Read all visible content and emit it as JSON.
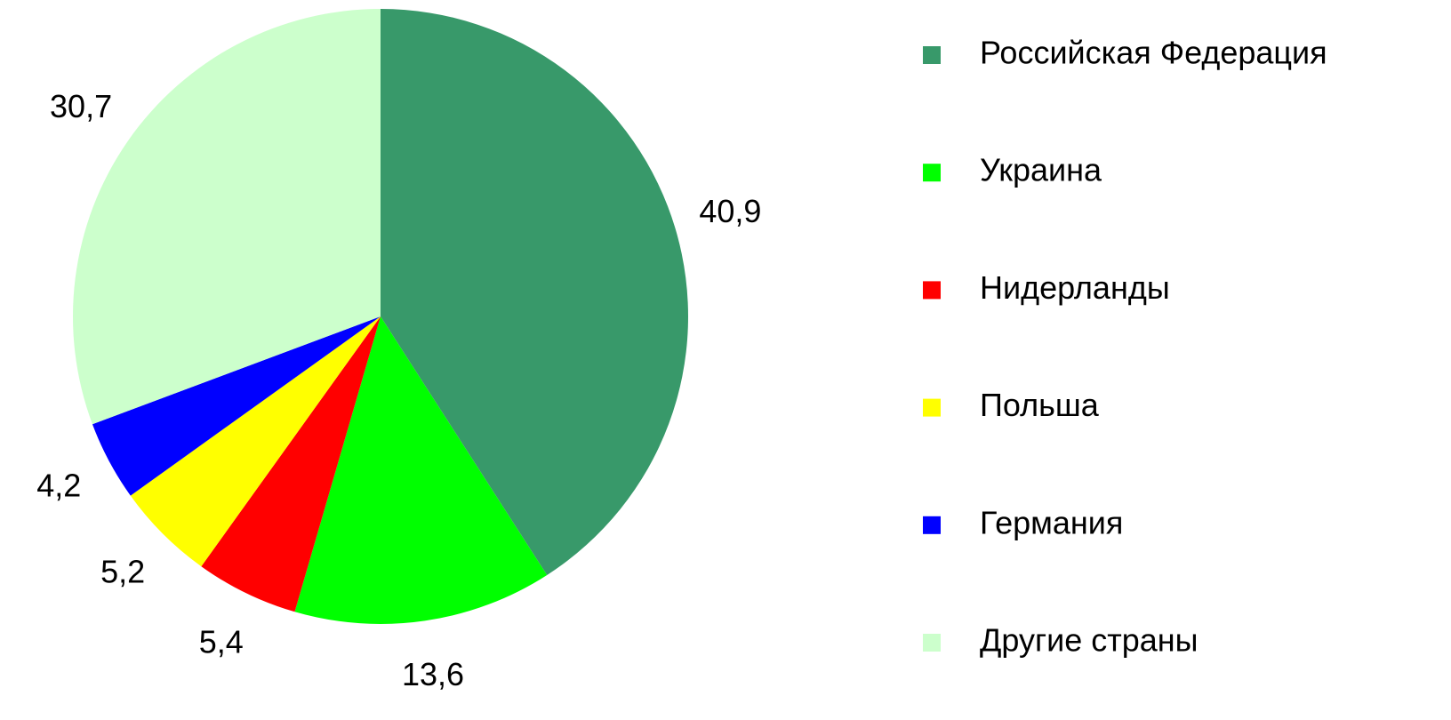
{
  "chart_data": {
    "type": "pie",
    "categories": [
      "Российская Федерация",
      "Украина",
      "Нидерланды",
      "Польша",
      "Германия",
      "Другие страны"
    ],
    "values": [
      40.9,
      13.6,
      5.4,
      5.2,
      4.2,
      30.7
    ],
    "value_labels": [
      "40,9",
      "13,6",
      "5,4",
      "5,2",
      "4,2",
      "30,7"
    ],
    "colors": [
      "#38996a",
      "#00ff00",
      "#ff0000",
      "#ffff00",
      "#0000ff",
      "#ccffcc"
    ],
    "legend": "right"
  }
}
